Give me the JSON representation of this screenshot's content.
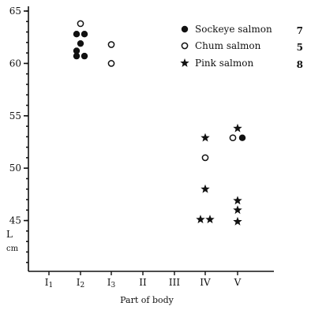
{
  "chart_data": {
    "type": "scatter",
    "xlabel": "Part of body",
    "ylabel": "L",
    "yunit": "cm",
    "categories": [
      "I1",
      "I2",
      "I3",
      "II",
      "III",
      "IV",
      "V"
    ],
    "ylim": [
      40,
      65
    ],
    "yticks": [
      45,
      50,
      55,
      60,
      65
    ],
    "grid": false,
    "legend_position": "top-right",
    "series": [
      {
        "name": "Sockeye salmon",
        "count": "7",
        "marker": "filled-circle",
        "points": [
          {
            "x": "I2",
            "y": 62.8
          },
          {
            "x": "I2",
            "y": 62.8
          },
          {
            "x": "I2",
            "y": 61.9
          },
          {
            "x": "I2",
            "y": 61.2
          },
          {
            "x": "I2",
            "y": 60.7
          },
          {
            "x": "I2",
            "y": 60.7
          },
          {
            "x": "V",
            "y": 52.9
          }
        ]
      },
      {
        "name": "Chum salmon",
        "count": "5",
        "marker": "open-circle",
        "points": [
          {
            "x": "I2",
            "y": 63.8
          },
          {
            "x": "I3",
            "y": 61.8
          },
          {
            "x": "I3",
            "y": 60.0
          },
          {
            "x": "IV",
            "y": 51.0
          },
          {
            "x": "V",
            "y": 52.9
          }
        ]
      },
      {
        "name": "Pink salmon",
        "count": "8",
        "marker": "star",
        "points": [
          {
            "x": "IV",
            "y": 52.9
          },
          {
            "x": "IV",
            "y": 48.0
          },
          {
            "x": "IV",
            "y": 45.1
          },
          {
            "x": "IV",
            "y": 45.1
          },
          {
            "x": "V",
            "y": 53.8
          },
          {
            "x": "V",
            "y": 46.9
          },
          {
            "x": "V",
            "y": 46.0
          },
          {
            "x": "V",
            "y": 44.9
          }
        ]
      }
    ]
  }
}
